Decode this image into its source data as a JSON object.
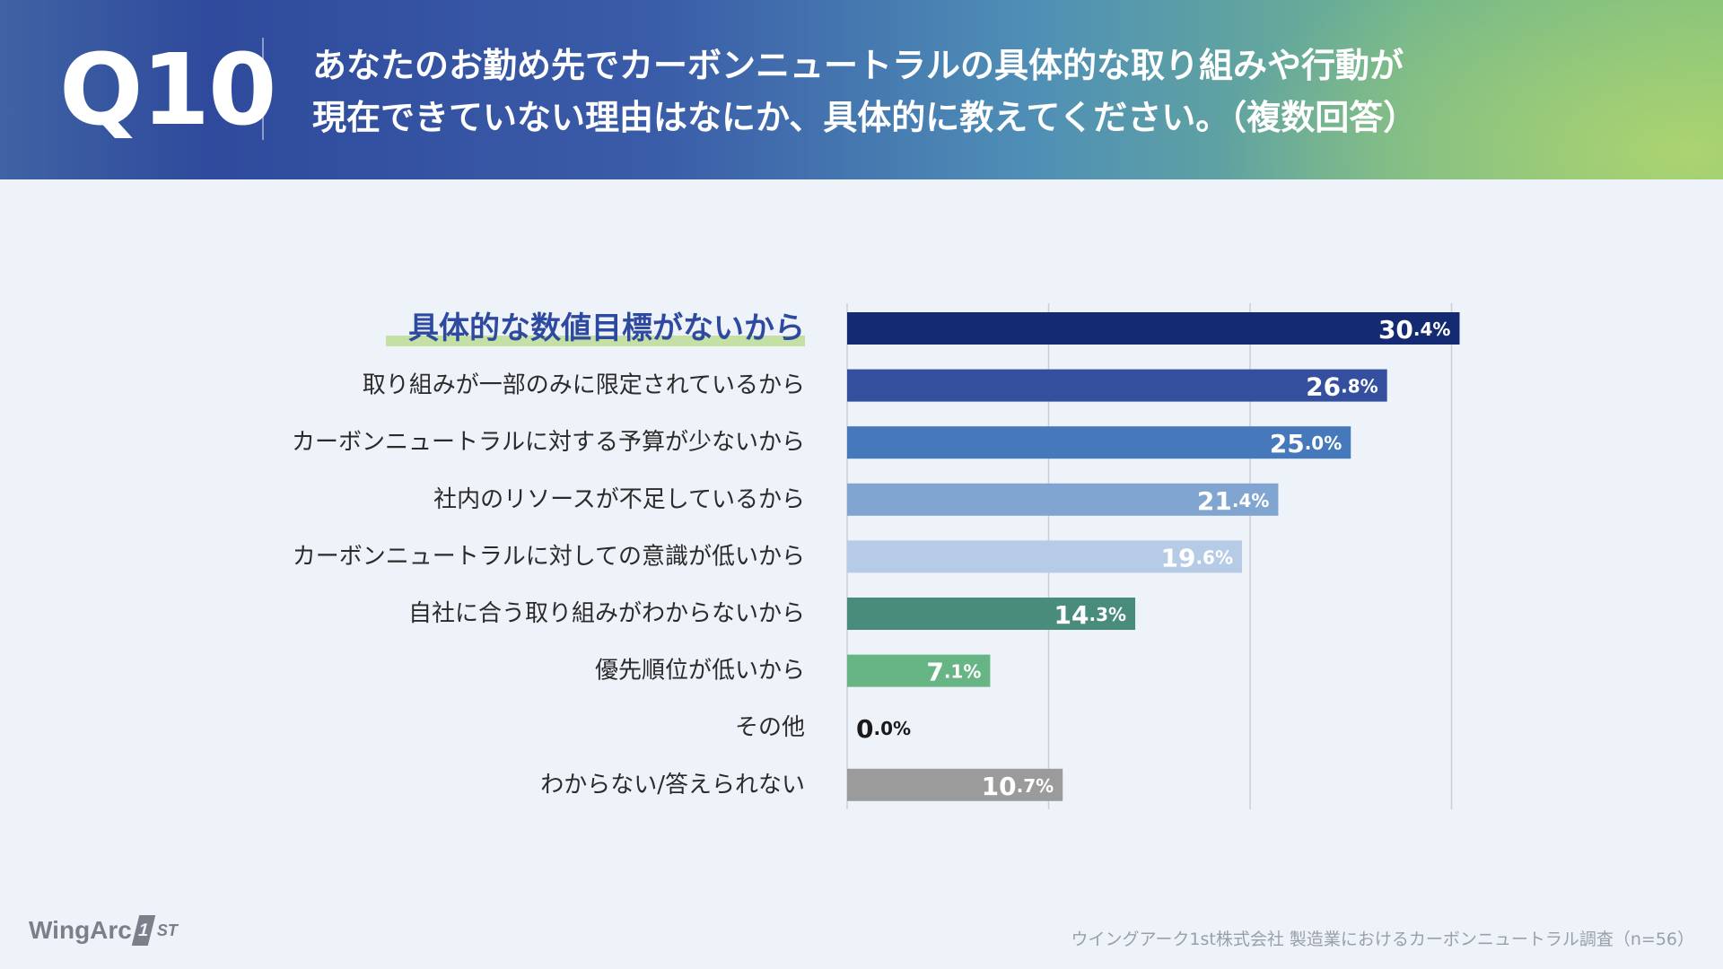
{
  "header": {
    "question_number": "Q10",
    "title_line1": "あなたのお勤め先でカーボンニュートラルの具体的な取り組みや行動が",
    "title_line2": "現在できていない理由はなにか、具体的に教えてください。（複数回答）"
  },
  "colors": {
    "highlight_text": "#2e4aa0",
    "highlight_underline": "#c5e0a5",
    "label_text": "#2b2b2b",
    "grid": "#c9ced8"
  },
  "chart_data": {
    "type": "bar",
    "orientation": "horizontal",
    "title": "",
    "xlabel": "",
    "ylabel": "",
    "xlim": [
      0,
      32
    ],
    "gridlines": [
      0,
      10,
      20,
      30
    ],
    "unit": "%",
    "categories": [
      "具体的な数値目標がないから",
      "取り組みが一部のみに限定されているから",
      "カーボンニュートラルに対する予算が少ないから",
      "社内のリソースが不足しているから",
      "カーボンニュートラルに対しての意識が低いから",
      "自社に合う取り組みがわからないから",
      "優先順位が低いから",
      "その他",
      "わからない/答えられない"
    ],
    "values": [
      30.4,
      26.8,
      25.0,
      21.4,
      19.6,
      14.3,
      7.1,
      0.0,
      10.7
    ],
    "value_labels": [
      {
        "int": "30",
        "dec": ".4%"
      },
      {
        "int": "26",
        "dec": ".8%"
      },
      {
        "int": "25",
        "dec": ".0%"
      },
      {
        "int": "21",
        "dec": ".4%"
      },
      {
        "int": "19",
        "dec": ".6%"
      },
      {
        "int": "14",
        "dec": ".3%"
      },
      {
        "int": "7",
        "dec": ".1%"
      },
      {
        "int": "0",
        "dec": ".0%"
      },
      {
        "int": "10",
        "dec": ".7%"
      }
    ],
    "bar_colors": [
      "#142a72",
      "#344f9e",
      "#4579bb",
      "#80a5d1",
      "#b6cbe6",
      "#4a8c7c",
      "#67b585",
      "#aaaaaa",
      "#9b9b9b"
    ],
    "highlight_index": 0
  },
  "footer": {
    "logo_main": "WingArc",
    "logo_mark": "1",
    "logo_sub": "ST",
    "source": "ウイングアーク1st株式会社  製造業におけるカーボンニュートラル調査（n=56）"
  }
}
